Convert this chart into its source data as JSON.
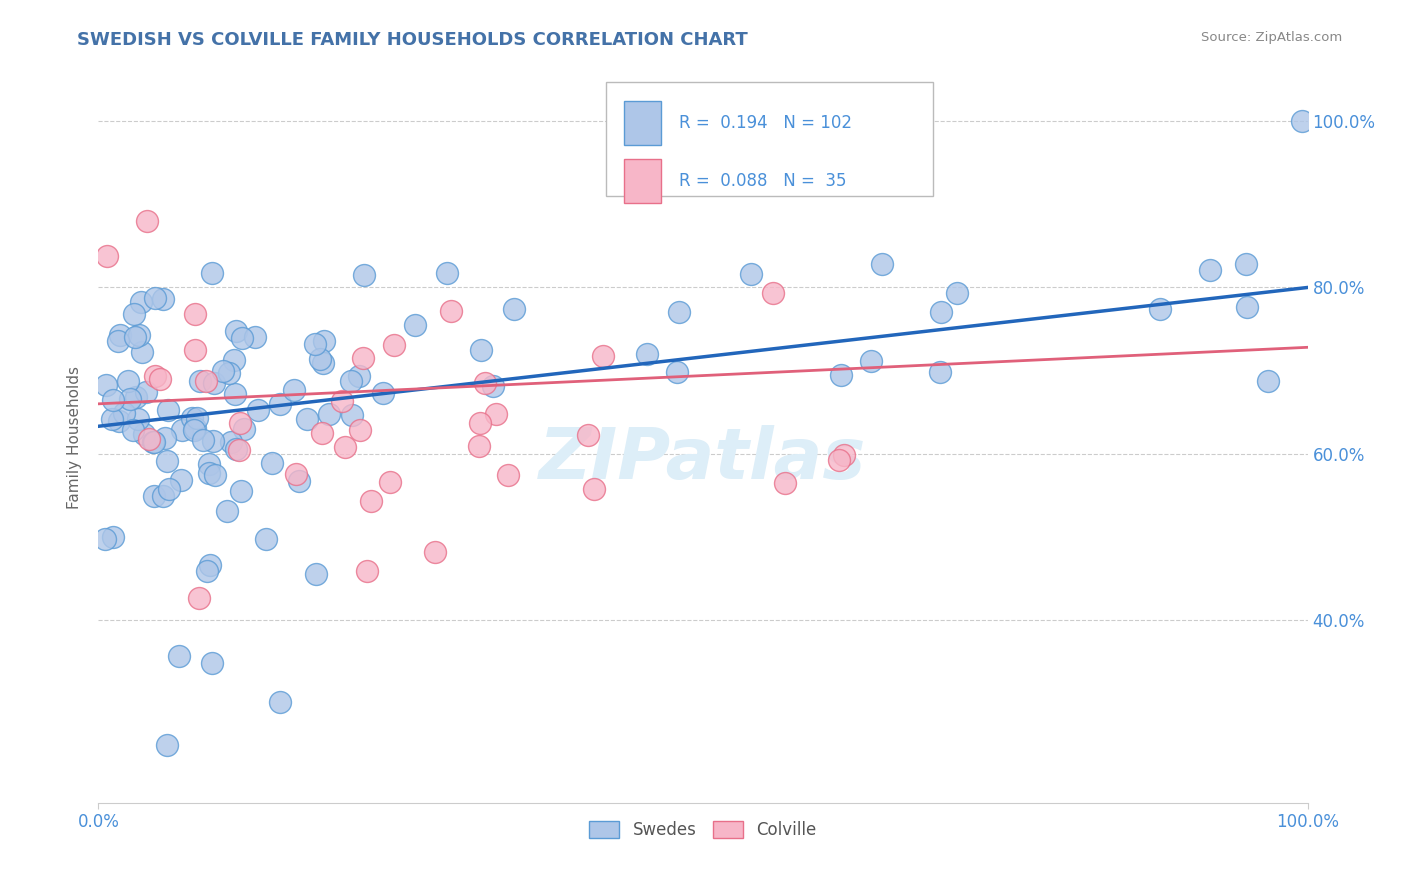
{
  "title": "SWEDISH VS COLVILLE FAMILY HOUSEHOLDS CORRELATION CHART",
  "source_text": "Source: ZipAtlas.com",
  "ylabel": "Family Households",
  "legend_swedes": "Swedes",
  "legend_colville": "Colville",
  "R_swedes": 0.194,
  "N_swedes": 102,
  "R_colville": 0.088,
  "N_colville": 35,
  "swedes_color": "#aec6e8",
  "colville_color": "#f7b6c8",
  "swedes_edge_color": "#5b9bd5",
  "colville_edge_color": "#e8708a",
  "swedes_line_color": "#2266bb",
  "colville_line_color": "#e0607a",
  "title_color": "#4472a8",
  "axis_tick_color": "#4a90d9",
  "ylabel_color": "#666666",
  "background_color": "#ffffff",
  "grid_color": "#cccccc",
  "watermark_text": "ZIPatlas",
  "watermark_color": "#ddeef8",
  "source_color": "#888888",
  "legend_border_color": "#bbbbbb",
  "trend_sw_x0": 0.0,
  "trend_sw_x1": 1.0,
  "trend_sw_y0": 0.633,
  "trend_sw_y1": 0.8,
  "trend_co_x0": 0.0,
  "trend_co_x1": 1.0,
  "trend_co_y0": 0.66,
  "trend_co_y1": 0.728,
  "ylim_min": 0.18,
  "ylim_max": 1.06,
  "xlim_min": 0.0,
  "xlim_max": 1.0,
  "ytick_vals": [
    0.4,
    0.6,
    0.8,
    1.0
  ],
  "ytick_labels": [
    "40.0%",
    "60.0%",
    "80.0%",
    "100.0%"
  ],
  "xtick_vals": [
    0.0,
    1.0
  ],
  "xtick_labels": [
    "0.0%",
    "100.0%"
  ]
}
